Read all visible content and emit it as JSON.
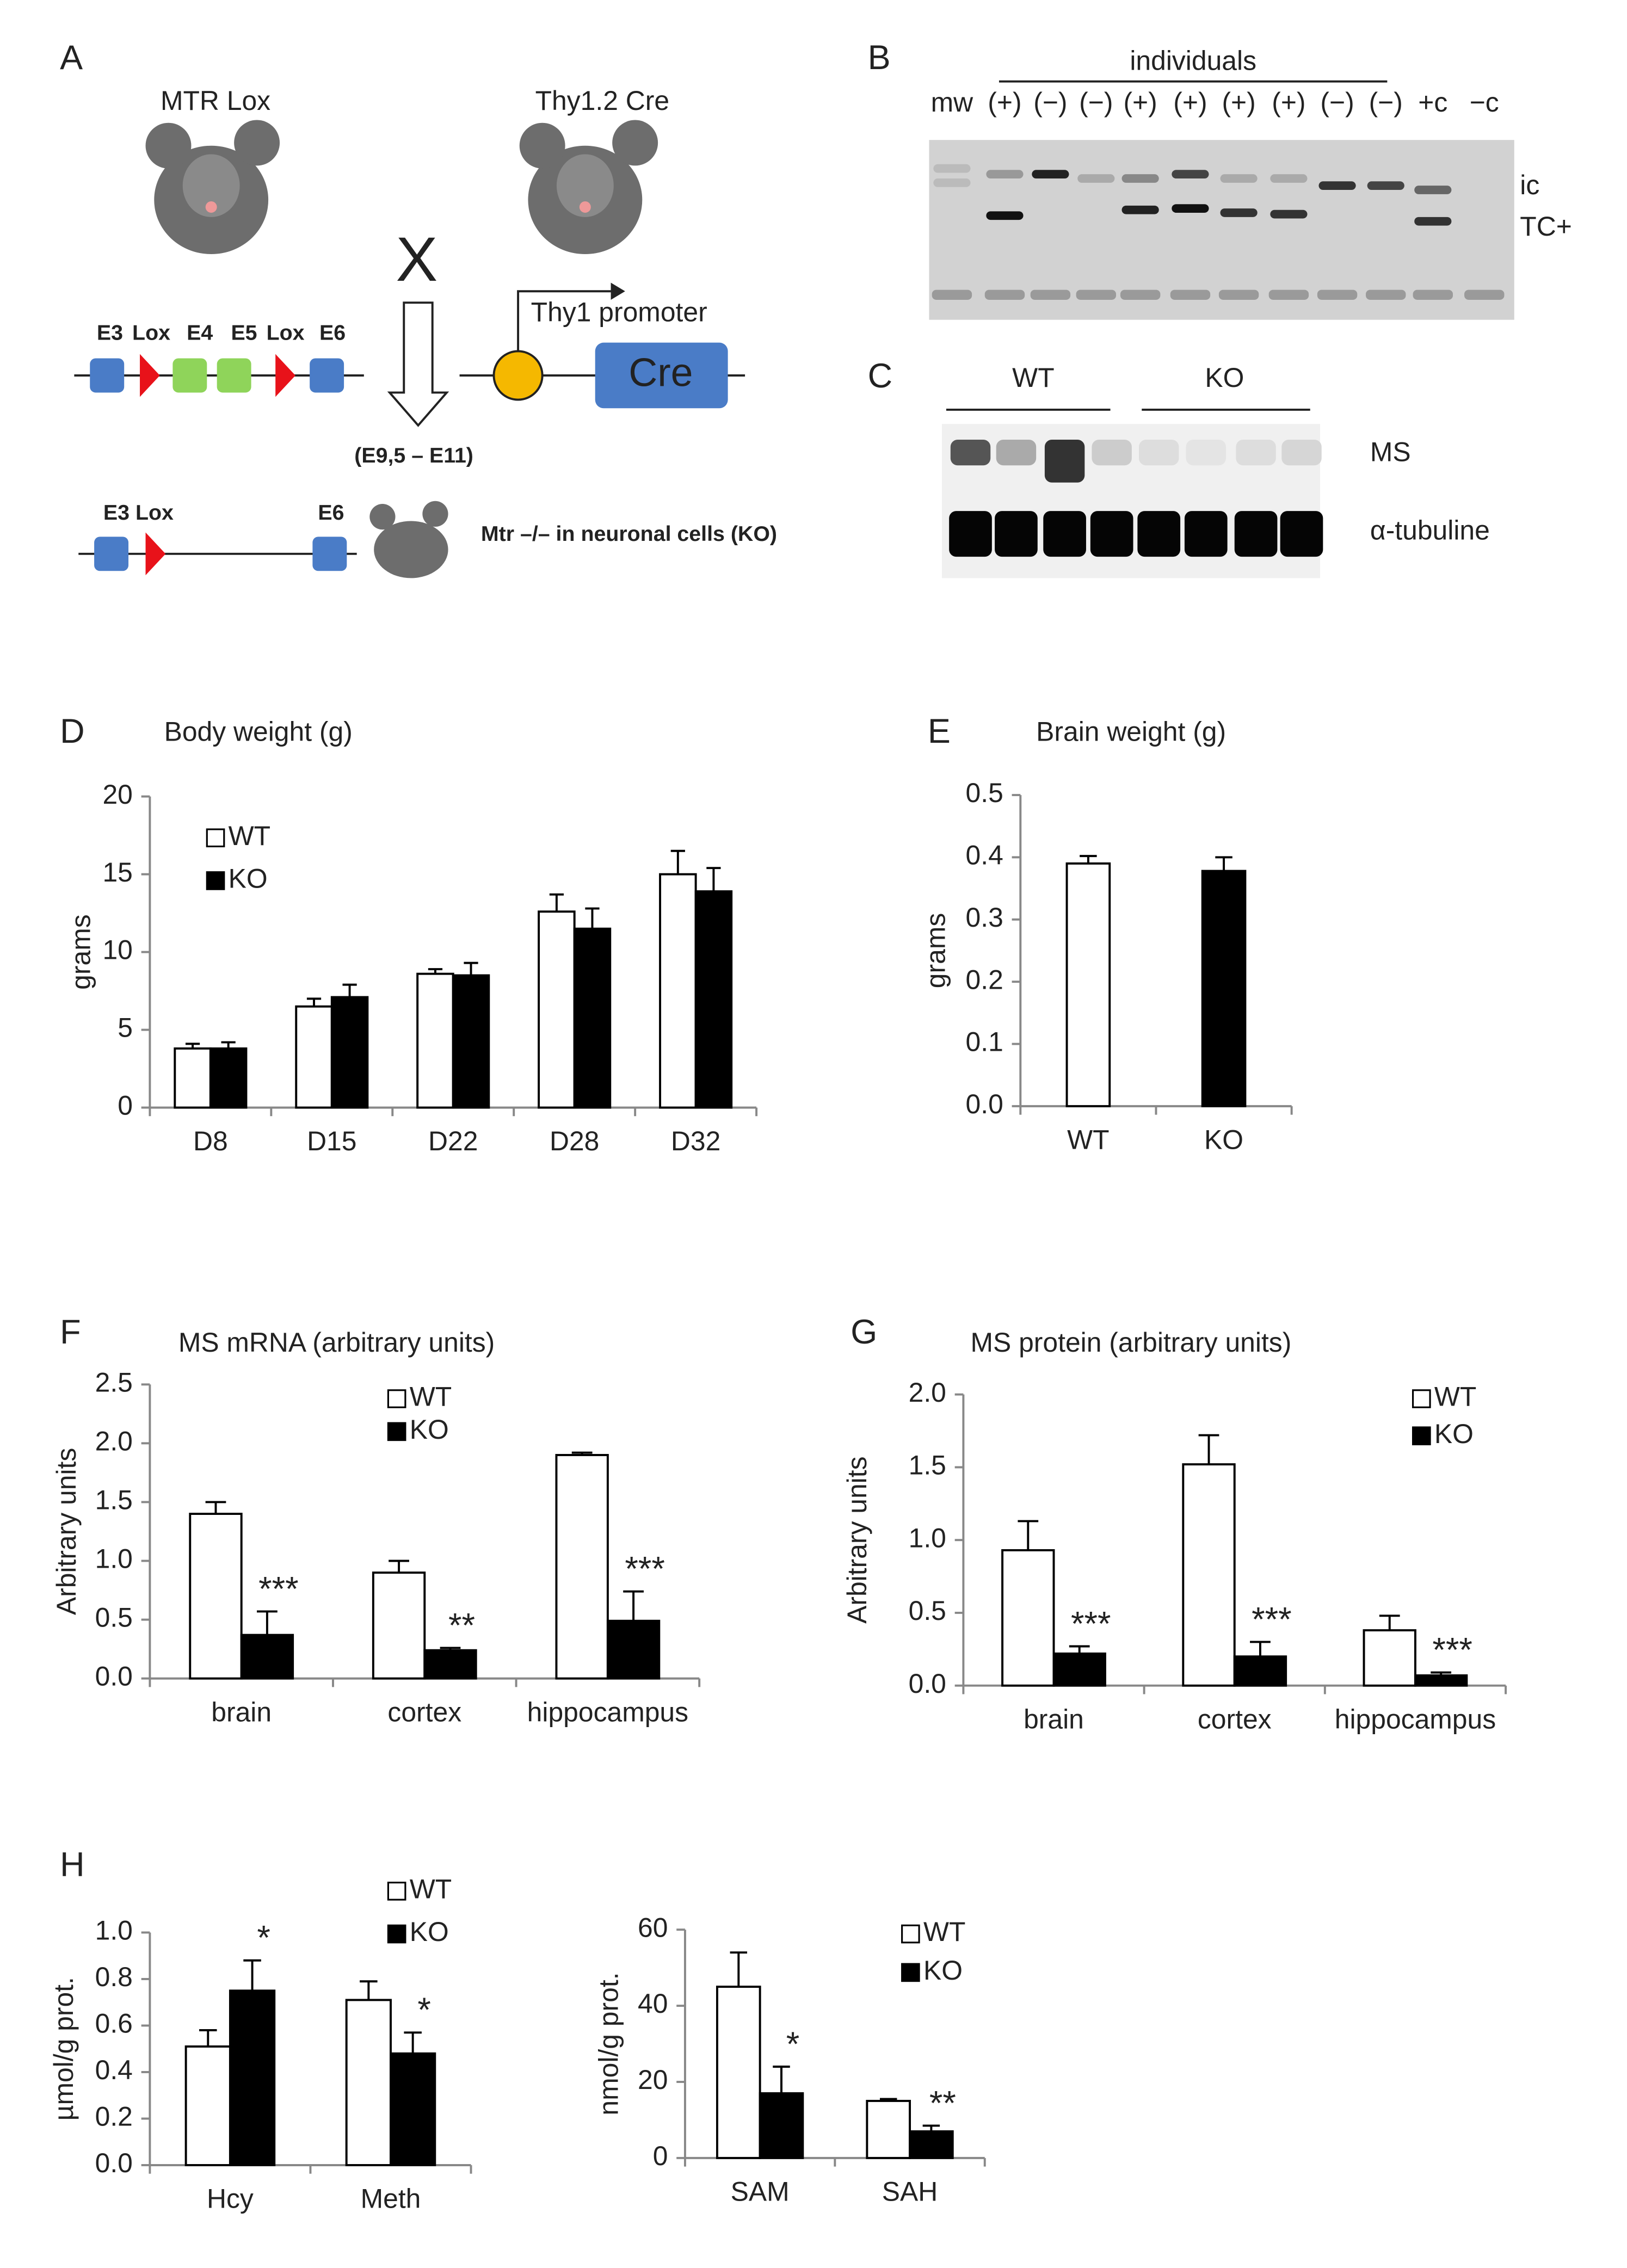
{
  "panel_a": {
    "label": "A",
    "mouse_left": "MTR Lox",
    "mouse_right": "Thy1.2 Cre",
    "cross": "X",
    "promoter": "Thy1 promoter",
    "gene": "Cre",
    "exons_top": [
      "E3",
      "Lox",
      "E4",
      "E5",
      "Lox",
      "E6"
    ],
    "timing": "(E9,5 – E11)",
    "exons_bottom": [
      "E3 Lox",
      "E6"
    ],
    "result": "Mtr –/– in neuronal cells (KO)"
  },
  "panel_b": {
    "label": "B",
    "group": "individuals",
    "lanes": [
      "mw",
      "(+)",
      "(−)",
      "(−)",
      "(+)",
      "(+)",
      "(+)",
      "(+)",
      "(−)",
      "(−)",
      "+c",
      "−c"
    ],
    "bands": [
      "ic",
      "TC+"
    ]
  },
  "panel_c": {
    "label": "C",
    "groups": [
      "WT",
      "KO"
    ],
    "rows": [
      "MS",
      "α-tubuline"
    ]
  },
  "chart_data": [
    {
      "type": "bar",
      "panel": "D",
      "title": "Body weight (g)",
      "ylabel": "grams",
      "categories": [
        "D8",
        "D15",
        "D22",
        "D28",
        "D32"
      ],
      "series": [
        {
          "name": "WT",
          "color": "#ffffff",
          "values": [
            3.8,
            6.5,
            8.6,
            12.6,
            15.0
          ],
          "errors": [
            0.3,
            0.5,
            0.3,
            1.1,
            1.5
          ]
        },
        {
          "name": "KO",
          "color": "#000000",
          "values": [
            3.8,
            7.1,
            8.5,
            11.5,
            13.9
          ],
          "errors": [
            0.4,
            0.8,
            0.8,
            1.3,
            1.5
          ]
        }
      ],
      "ylim": [
        0,
        20
      ],
      "yticks": [
        0,
        5,
        10,
        15,
        20
      ],
      "legend": "upper left"
    },
    {
      "type": "bar",
      "panel": "E",
      "title": "Brain weight (g)",
      "ylabel": "grams",
      "categories": [
        "WT",
        "KO"
      ],
      "values": [
        0.39,
        0.378
      ],
      "errors": [
        0.012,
        0.022
      ],
      "colors": [
        "#ffffff",
        "#000000"
      ],
      "ylim": [
        0,
        0.5
      ],
      "yticks": [
        {
          "value": 0,
          "label": "0.0"
        },
        0.1,
        0.2,
        0.3,
        0.4,
        0.5
      ]
    },
    {
      "type": "bar",
      "panel": "F",
      "title": "MS mRNA (arbitrary units)",
      "ylabel": "Arbitrary units",
      "categories": [
        "brain",
        "cortex",
        "hippocampus"
      ],
      "series": [
        {
          "name": "WT",
          "color": "#ffffff",
          "values": [
            1.4,
            0.9,
            1.9
          ],
          "errors": [
            0.1,
            0.1,
            0.02
          ]
        },
        {
          "name": "KO",
          "color": "#000000",
          "values": [
            0.37,
            0.24,
            0.49
          ],
          "errors": [
            0.2,
            0.02,
            0.25
          ],
          "annotations": [
            "***",
            "**",
            "***"
          ]
        }
      ],
      "ylim": [
        0,
        2.5
      ],
      "yticks": [
        {
          "value": 0,
          "label": "0.0"
        },
        0.5,
        {
          "value": 1,
          "label": "1.0"
        },
        1.5,
        {
          "value": 2,
          "label": "2.0"
        },
        2.5
      ],
      "legend": "upper center"
    },
    {
      "type": "bar",
      "panel": "G",
      "title": "MS protein (arbitrary units)",
      "ylabel": "Arbitrary units",
      "categories": [
        "brain",
        "cortex",
        "hippocampus"
      ],
      "series": [
        {
          "name": "WT",
          "color": "#ffffff",
          "values": [
            0.93,
            1.52,
            0.38
          ],
          "errors": [
            0.2,
            0.2,
            0.1
          ]
        },
        {
          "name": "KO",
          "color": "#000000",
          "values": [
            0.22,
            0.2,
            0.07
          ],
          "errors": [
            0.05,
            0.1,
            0.02
          ],
          "annotations": [
            "***",
            "***",
            "***"
          ]
        }
      ],
      "ylim": [
        0,
        2
      ],
      "yticks": [
        {
          "value": 0,
          "label": "0.0"
        },
        0.5,
        {
          "value": 1,
          "label": "1.0"
        },
        1.5,
        {
          "value": 2,
          "label": "2.0"
        }
      ],
      "legend": "upper right"
    },
    {
      "type": "bar",
      "panel": "H",
      "ylabel": "µmol/g prot.",
      "categories": [
        "Hcy",
        "Meth"
      ],
      "series": [
        {
          "name": "WT",
          "color": "#ffffff",
          "values": [
            0.51,
            0.71
          ],
          "errors": [
            0.07,
            0.08
          ]
        },
        {
          "name": "KO",
          "color": "#000000",
          "values": [
            0.75,
            0.48
          ],
          "errors": [
            0.13,
            0.09
          ],
          "annotations": [
            "*",
            "*"
          ]
        }
      ],
      "ylim": [
        0,
        1
      ],
      "yticks": [
        {
          "value": 0,
          "label": "0.0"
        },
        0.2,
        0.4,
        0.6,
        0.8,
        {
          "value": 1,
          "label": "1.0"
        }
      ],
      "legend": "upper right"
    },
    {
      "type": "bar",
      "ylabel": "nmol/g prot.",
      "categories": [
        "SAM",
        "SAH"
      ],
      "series": [
        {
          "name": "WT",
          "color": "#ffffff",
          "values": [
            45,
            15
          ],
          "errors": [
            9,
            0.5
          ]
        },
        {
          "name": "KO",
          "color": "#000000",
          "values": [
            17,
            7
          ],
          "errors": [
            7,
            1.5
          ],
          "annotations": [
            "*",
            "**"
          ]
        }
      ],
      "ylim": [
        0,
        60
      ],
      "yticks": [
        0,
        20,
        40,
        60
      ],
      "legend": "upper right"
    }
  ]
}
